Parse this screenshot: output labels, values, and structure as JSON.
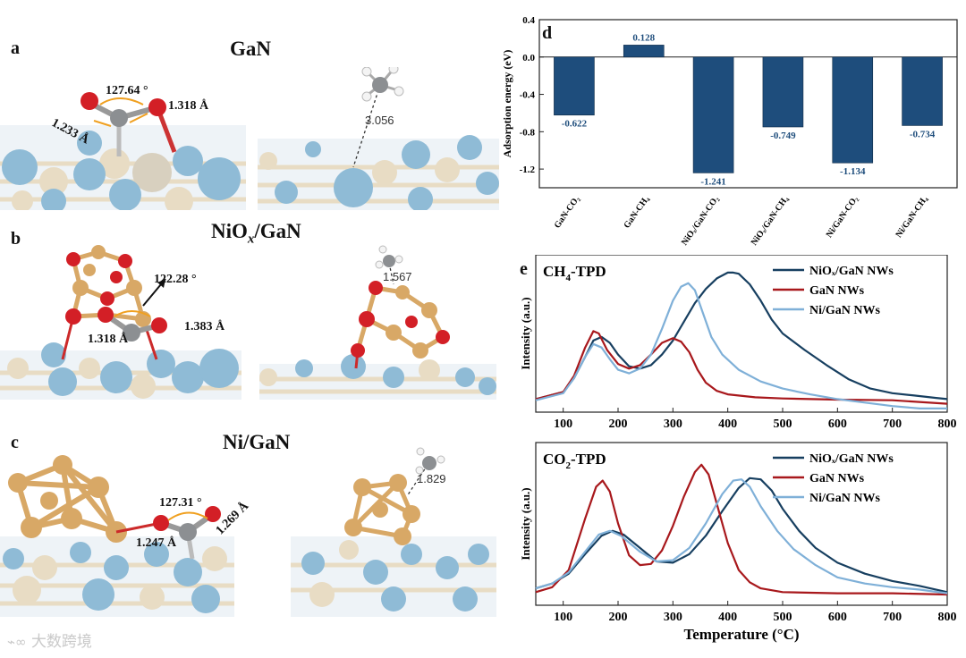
{
  "panels": {
    "a": {
      "label": "a",
      "title": "GaN",
      "angle": "127.64 °",
      "bond_left": "1.233 Å",
      "bond_right": "1.318 Å",
      "ch4_distance": "3.056"
    },
    "b": {
      "label": "b",
      "title_main": "NiO",
      "title_sub": "x",
      "title_tail": "/GaN",
      "angle": "122.28 °",
      "bond_left": "1.318 Å",
      "bond_right": "1.383 Å",
      "ch4_distance": "1.567"
    },
    "c": {
      "label": "c",
      "title": "Ni/GaN",
      "angle": "127.31 °",
      "bond_left": "1.247 Å",
      "bond_right": "1.269 Å",
      "ch4_distance": "1.829"
    },
    "d": {
      "label": "d"
    },
    "e": {
      "label": "e"
    }
  },
  "colors": {
    "bar": "#1e4d7c",
    "navy": "#173f60",
    "red": "#a8181c",
    "light": "#7fb0d8",
    "gan_blue": "#8fbbd6",
    "gan_beige": "#e8dcc4",
    "ni": "#d8a866",
    "oxygen": "#d31f26",
    "carbon": "#8c8f92"
  },
  "chart_data": [
    {
      "type": "bar",
      "panel": "d",
      "categories": [
        "GaN-CO₂",
        "GaN-CH₄",
        "NiOₓ/GaN-CO₂",
        "NiOₓ/GaN-CH₄",
        "Ni/GaN-CO₂",
        "Ni/GaN-CH₄"
      ],
      "values": [
        -0.622,
        0.128,
        -1.241,
        -0.749,
        -1.134,
        -0.734
      ],
      "value_labels": [
        "-0.622",
        "0.128",
        "-1.241",
        "-0.749",
        "-1.134",
        "-0.734"
      ],
      "ylabel": "Adsorption energy (eV)",
      "ylim": [
        -1.4,
        0.4
      ],
      "yticks": [
        "0.4",
        "0.0",
        "-0.4",
        "-0.8",
        "-1.2"
      ]
    },
    {
      "type": "line",
      "panel": "e-top",
      "title_main": "CH",
      "title_sub": "4",
      "title_tail": "-TPD",
      "ylabel": "Intensity (a.u.)",
      "xlim": [
        50,
        800
      ],
      "xticks": [
        "100",
        "200",
        "300",
        "400",
        "500",
        "600",
        "700",
        "800"
      ],
      "legend": "top-right",
      "series": [
        {
          "name": "NiOₓ/GaN NWs",
          "color": "#173f60",
          "x": [
            50,
            100,
            120,
            140,
            155,
            170,
            185,
            200,
            220,
            240,
            260,
            280,
            300,
            320,
            340,
            360,
            380,
            400,
            410,
            420,
            440,
            460,
            480,
            500,
            540,
            580,
            620,
            660,
            700,
            740,
            780,
            800
          ],
          "y": [
            0.02,
            0.08,
            0.2,
            0.38,
            0.52,
            0.55,
            0.5,
            0.4,
            0.3,
            0.28,
            0.31,
            0.4,
            0.52,
            0.68,
            0.84,
            0.96,
            1.05,
            1.1,
            1.1,
            1.09,
            1.0,
            0.86,
            0.7,
            0.58,
            0.44,
            0.31,
            0.19,
            0.11,
            0.07,
            0.05,
            0.03,
            0.02
          ]
        },
        {
          "name": "GaN NWs",
          "color": "#a8181c",
          "x": [
            50,
            100,
            120,
            140,
            155,
            165,
            180,
            200,
            220,
            240,
            260,
            280,
            300,
            315,
            330,
            345,
            360,
            380,
            400,
            450,
            500,
            600,
            700,
            800
          ],
          "y": [
            0.02,
            0.08,
            0.22,
            0.46,
            0.6,
            0.58,
            0.44,
            0.32,
            0.28,
            0.31,
            0.4,
            0.5,
            0.54,
            0.51,
            0.42,
            0.27,
            0.16,
            0.09,
            0.06,
            0.035,
            0.025,
            0.015,
            0.01,
            -0.02
          ]
        },
        {
          "name": "Ni/GaN NWs",
          "color": "#7fb0d8",
          "x": [
            50,
            100,
            120,
            140,
            155,
            170,
            185,
            200,
            220,
            240,
            260,
            280,
            300,
            315,
            328,
            340,
            355,
            370,
            390,
            420,
            460,
            500,
            550,
            600,
            650,
            700,
            750,
            800
          ],
          "y": [
            0.01,
            0.07,
            0.2,
            0.38,
            0.49,
            0.46,
            0.36,
            0.27,
            0.24,
            0.28,
            0.4,
            0.62,
            0.86,
            0.98,
            1.01,
            0.95,
            0.75,
            0.55,
            0.4,
            0.27,
            0.17,
            0.11,
            0.06,
            0.02,
            -0.01,
            -0.04,
            -0.06,
            -0.06
          ]
        }
      ]
    },
    {
      "type": "line",
      "panel": "e-bottom",
      "title_main": "CO",
      "title_sub": "2",
      "title_tail": "-TPD",
      "ylabel": "Intensity (a.u.)",
      "xlabel": "Temperature (°C)",
      "xlim": [
        50,
        800
      ],
      "xticks": [
        "100",
        "200",
        "300",
        "400",
        "500",
        "600",
        "700",
        "800"
      ],
      "legend": "top-right",
      "series": [
        {
          "name": "NiOₓ/GaN NWs",
          "color": "#173f60",
          "x": [
            50,
            80,
            110,
            140,
            170,
            190,
            210,
            240,
            270,
            300,
            330,
            360,
            390,
            420,
            440,
            460,
            480,
            500,
            530,
            560,
            600,
            650,
            700,
            750,
            800
          ],
          "y": [
            0.05,
            0.09,
            0.17,
            0.33,
            0.48,
            0.52,
            0.49,
            0.38,
            0.27,
            0.26,
            0.33,
            0.48,
            0.68,
            0.87,
            0.95,
            0.94,
            0.85,
            0.7,
            0.52,
            0.38,
            0.26,
            0.17,
            0.11,
            0.07,
            0.02
          ]
        },
        {
          "name": "GaN NWs",
          "color": "#a8181c",
          "x": [
            50,
            80,
            110,
            140,
            160,
            172,
            185,
            200,
            220,
            240,
            260,
            280,
            300,
            320,
            340,
            352,
            365,
            380,
            400,
            420,
            440,
            460,
            500,
            600,
            700,
            800
          ],
          "y": [
            0.02,
            0.06,
            0.2,
            0.62,
            0.88,
            0.93,
            0.84,
            0.58,
            0.32,
            0.24,
            0.25,
            0.36,
            0.56,
            0.8,
            1.0,
            1.06,
            0.98,
            0.74,
            0.42,
            0.2,
            0.1,
            0.05,
            0.02,
            0.01,
            0.01,
            0.0
          ]
        },
        {
          "name": "Ni/GaN NWs",
          "color": "#7fb0d8",
          "x": [
            50,
            80,
            110,
            140,
            165,
            185,
            205,
            240,
            270,
            300,
            330,
            360,
            390,
            410,
            425,
            440,
            460,
            490,
            520,
            560,
            600,
            650,
            700,
            750,
            800
          ],
          "y": [
            0.05,
            0.09,
            0.18,
            0.35,
            0.49,
            0.52,
            0.48,
            0.35,
            0.27,
            0.28,
            0.38,
            0.58,
            0.82,
            0.93,
            0.94,
            0.88,
            0.72,
            0.52,
            0.37,
            0.24,
            0.14,
            0.09,
            0.06,
            0.04,
            0.01
          ]
        }
      ]
    }
  ],
  "watermark": "大数跨境"
}
